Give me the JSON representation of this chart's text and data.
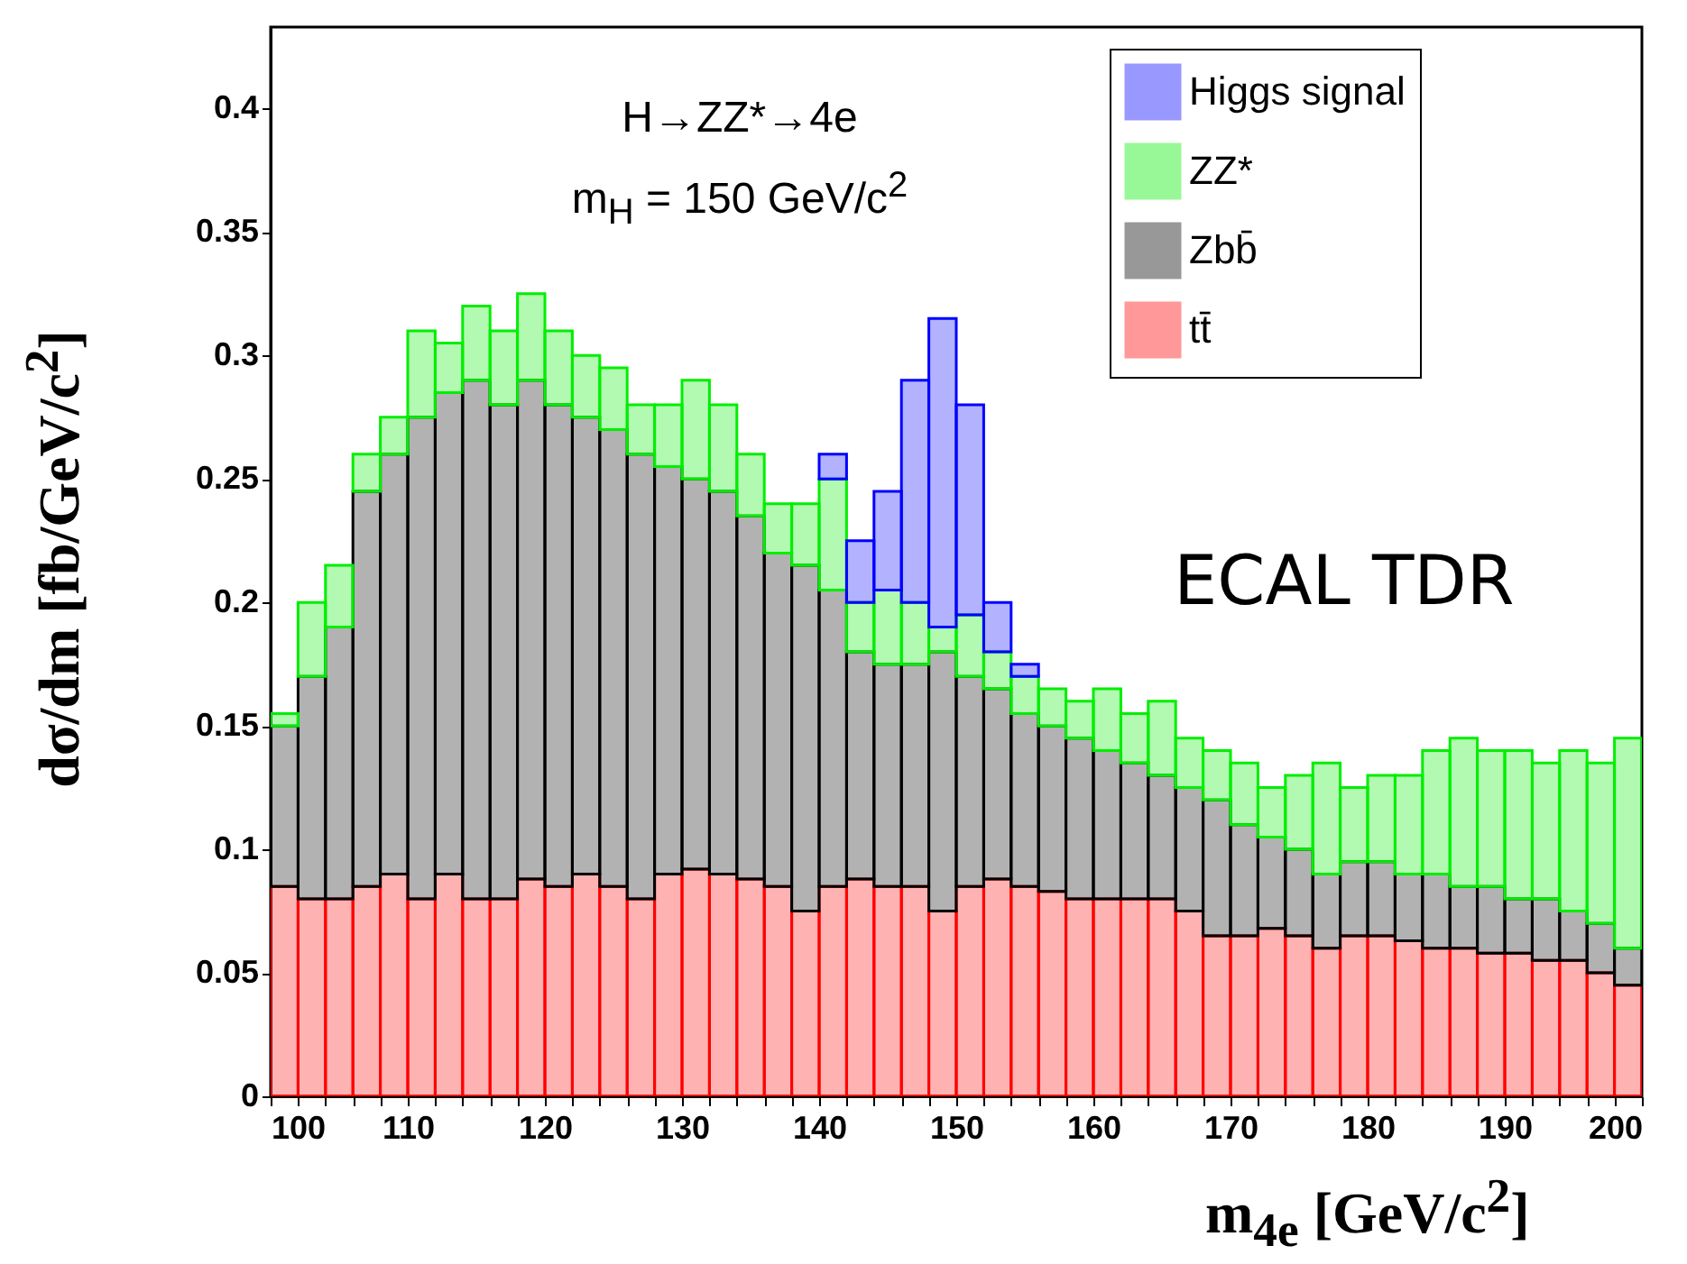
{
  "chart_data": {
    "type": "bar",
    "stacked": true,
    "xlabel": "m$_{4e}$ [GeV/c$^{2}$]",
    "ylabel": "dσ/dm [fb/GeV/c$^{2}$]",
    "annotations": [
      "H→ZZ*→4e",
      "m$_{H}$ = 150 GeV/c$^{2}$",
      "ECAL TDR"
    ],
    "x": [
      101,
      103,
      105,
      107,
      109,
      111,
      113,
      115,
      117,
      119,
      121,
      123,
      125,
      127,
      129,
      131,
      133,
      135,
      137,
      139,
      141,
      143,
      145,
      147,
      149,
      151,
      153,
      155,
      157,
      159,
      161,
      163,
      165,
      167,
      169,
      171,
      173,
      175,
      177,
      179,
      181,
      183,
      185,
      187,
      189,
      191,
      193,
      195,
      197,
      199
    ],
    "series": [
      {
        "name": "tt̄",
        "color": "#ff0000",
        "values": [
          0.085,
          0.08,
          0.08,
          0.085,
          0.09,
          0.08,
          0.09,
          0.08,
          0.08,
          0.088,
          0.085,
          0.09,
          0.085,
          0.08,
          0.09,
          0.092,
          0.09,
          0.088,
          0.085,
          0.075,
          0.085,
          0.088,
          0.085,
          0.085,
          0.075,
          0.085,
          0.088,
          0.085,
          0.083,
          0.08,
          0.08,
          0.08,
          0.08,
          0.075,
          0.065,
          0.065,
          0.068,
          0.065,
          0.06,
          0.065,
          0.065,
          0.063,
          0.06,
          0.06,
          0.058,
          0.058,
          0.055,
          0.055,
          0.05,
          0.045
        ]
      },
      {
        "name": "Zbb̄",
        "color": "#000000",
        "values": [
          0.065,
          0.09,
          0.11,
          0.16,
          0.17,
          0.195,
          0.195,
          0.21,
          0.2,
          0.202,
          0.195,
          0.185,
          0.185,
          0.18,
          0.165,
          0.158,
          0.155,
          0.147,
          0.135,
          0.14,
          0.12,
          0.092,
          0.09,
          0.09,
          0.105,
          0.085,
          0.077,
          0.07,
          0.067,
          0.065,
          0.06,
          0.055,
          0.05,
          0.05,
          0.055,
          0.045,
          0.037,
          0.035,
          0.03,
          0.03,
          0.03,
          0.027,
          0.03,
          0.025,
          0.027,
          0.022,
          0.025,
          0.02,
          0.02,
          0.015
        ]
      },
      {
        "name": "ZZ*",
        "color": "#00ee00",
        "values": [
          0.005,
          0.03,
          0.025,
          0.015,
          0.015,
          0.035,
          0.02,
          0.03,
          0.03,
          0.035,
          0.03,
          0.025,
          0.025,
          0.02,
          0.025,
          0.04,
          0.035,
          0.025,
          0.02,
          0.025,
          0.045,
          0.02,
          0.03,
          0.025,
          0.01,
          0.025,
          0.015,
          0.015,
          0.015,
          0.015,
          0.025,
          0.02,
          0.03,
          0.02,
          0.02,
          0.025,
          0.02,
          0.03,
          0.045,
          0.03,
          0.035,
          0.04,
          0.05,
          0.06,
          0.055,
          0.06,
          0.055,
          0.065,
          0.065,
          0.085
        ]
      },
      {
        "name": "Higgs signal",
        "color": "#0000ff",
        "values": [
          null,
          null,
          null,
          null,
          null,
          null,
          null,
          null,
          null,
          null,
          null,
          null,
          null,
          null,
          null,
          null,
          null,
          null,
          null,
          null,
          0.01,
          0.025,
          0.04,
          0.09,
          0.125,
          0.085,
          0.02,
          0.005,
          null,
          null,
          null,
          null,
          null,
          null,
          null,
          null,
          null,
          null,
          null,
          null,
          null,
          null,
          null,
          null,
          null,
          null,
          null,
          null,
          null,
          null
        ]
      }
    ],
    "xlim": [
      100,
      200
    ],
    "xticks": [
      100,
      {
        "value": 102,
        "label": null
      },
      {
        "value": 104,
        "label": null
      },
      {
        "value": 106,
        "label": null
      },
      {
        "value": 108,
        "label": null
      },
      110,
      {
        "value": 112,
        "label": null
      },
      {
        "value": 114,
        "label": null
      },
      {
        "value": 116,
        "label": null
      },
      {
        "value": 118,
        "label": null
      },
      120,
      {
        "value": 122,
        "label": null
      },
      {
        "value": 124,
        "label": null
      },
      {
        "value": 126,
        "label": null
      },
      {
        "value": 128,
        "label": null
      },
      130,
      {
        "value": 132,
        "label": null
      },
      {
        "value": 134,
        "label": null
      },
      {
        "value": 136,
        "label": null
      },
      {
        "value": 138,
        "label": null
      },
      140,
      {
        "value": 142,
        "label": null
      },
      {
        "value": 144,
        "label": null
      },
      {
        "value": 146,
        "label": null
      },
      {
        "value": 148,
        "label": null
      },
      150,
      {
        "value": 152,
        "label": null
      },
      {
        "value": 154,
        "label": null
      },
      {
        "value": 156,
        "label": null
      },
      {
        "value": 158,
        "label": null
      },
      160,
      {
        "value": 162,
        "label": null
      },
      {
        "value": 164,
        "label": null
      },
      {
        "value": 166,
        "label": null
      },
      {
        "value": 168,
        "label": null
      },
      170,
      {
        "value": 172,
        "label": null
      },
      {
        "value": 174,
        "label": null
      },
      {
        "value": 176,
        "label": null
      },
      {
        "value": 178,
        "label": null
      },
      180,
      {
        "value": 182,
        "label": null
      },
      {
        "value": 184,
        "label": null
      },
      {
        "value": 186,
        "label": null
      },
      {
        "value": 188,
        "label": null
      },
      190,
      {
        "value": 192,
        "label": null
      },
      {
        "value": 194,
        "label": null
      },
      {
        "value": 196,
        "label": null
      },
      {
        "value": 198,
        "label": null
      },
      200
    ],
    "ylim": [
      0,
      0.433
    ],
    "yticks": [
      0,
      0.05,
      0.1,
      0.15,
      0.2,
      0.25,
      0.3,
      0.35,
      0.4
    ],
    "legend": "top right",
    "grid": false
  }
}
